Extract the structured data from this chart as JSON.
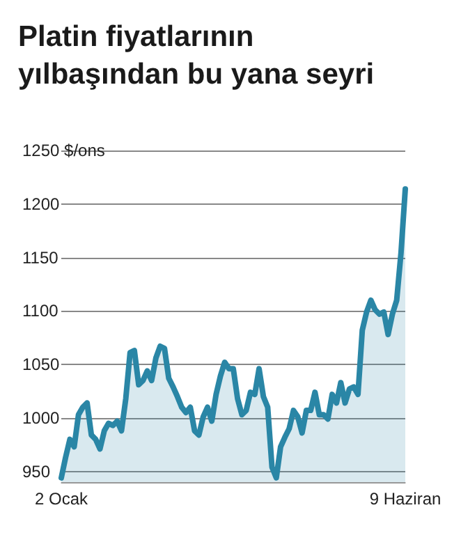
{
  "chart_data": {
    "type": "area",
    "title": "Platin fiyatlarının yılbaşından bu yana seyri",
    "categories": [
      "2 Ocak",
      null,
      null,
      null,
      null,
      null,
      null,
      null,
      null,
      null,
      null,
      null,
      null,
      null,
      null,
      null,
      null,
      null,
      null,
      null,
      null,
      null,
      null,
      null,
      null,
      null,
      null,
      null,
      null,
      null,
      null,
      null,
      null,
      null,
      null,
      null,
      null,
      null,
      null,
      null,
      null,
      null,
      null,
      null,
      null,
      null,
      null,
      null,
      null,
      null,
      null,
      null,
      null,
      null,
      null,
      null,
      null,
      null,
      null,
      null,
      null,
      null,
      null,
      null,
      null,
      null,
      null,
      null,
      null,
      null,
      null,
      null,
      null,
      null,
      null,
      null,
      null,
      null,
      null,
      null,
      "9 Haziran"
    ],
    "series": [
      {
        "color": "#2a86a6",
        "values": [
          944,
          963,
          980,
          973,
          1003,
          1010,
          1014,
          984,
          980,
          971,
          988,
          995,
          993,
          997,
          988,
          1018,
          1061,
          1063,
          1031,
          1035,
          1044,
          1035,
          1056,
          1067,
          1065,
          1037,
          1029,
          1020,
          1010,
          1005,
          1010,
          988,
          984,
          1001,
          1010,
          997,
          1022,
          1039,
          1052,
          1046,
          1046,
          1018,
          1003,
          1007,
          1024,
          1022,
          1046,
          1020,
          1010,
          954,
          944,
          973,
          982,
          990,
          1007,
          1001,
          986,
          1007,
          1007,
          1024,
          1003,
          1003,
          999,
          1022,
          1014,
          1033,
          1014,
          1027,
          1029,
          1022,
          1082,
          1099,
          1110,
          1101,
          1097,
          1099,
          1078,
          1097,
          1110,
          1154,
          1214
        ]
      }
    ],
    "ylim": [
      940,
      1250
    ],
    "yticks": [
      950,
      1000,
      1050,
      1100,
      1150,
      1200,
      {
        "value": 1250,
        "label": "1250 $/ons"
      }
    ],
    "grid": "y",
    "marker": "none",
    "line_style": "solid"
  }
}
